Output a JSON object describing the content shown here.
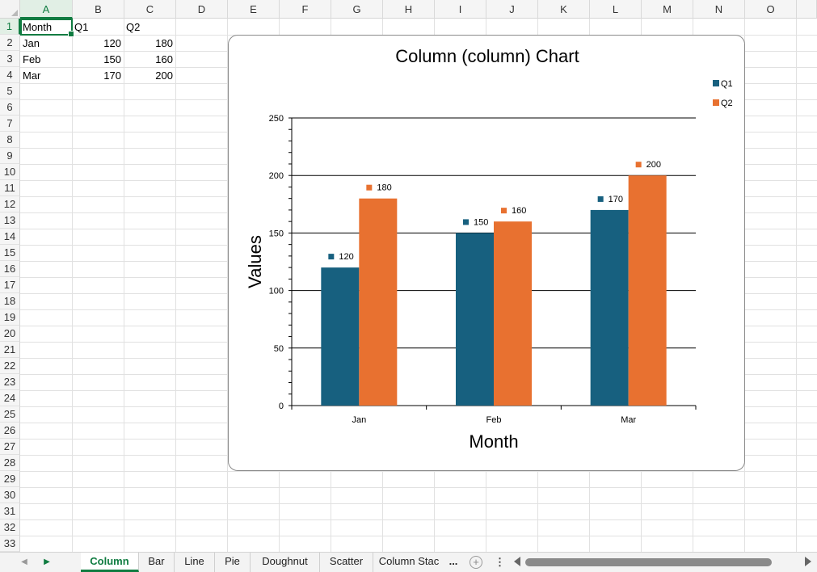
{
  "columns": [
    "A",
    "B",
    "C",
    "D",
    "E",
    "F",
    "G",
    "H",
    "I",
    "J",
    "K",
    "L",
    "M",
    "N",
    "O"
  ],
  "rows": [
    "1",
    "2",
    "3",
    "4",
    "5",
    "6",
    "7",
    "8",
    "9",
    "10",
    "11",
    "12",
    "13",
    "14",
    "15",
    "16",
    "17",
    "18",
    "19",
    "20",
    "21",
    "22",
    "23",
    "24",
    "25",
    "26",
    "27",
    "28",
    "29",
    "30",
    "31",
    "32",
    "33"
  ],
  "cells": {
    "a1": "Month",
    "b1": "Q1",
    "c1": "Q2",
    "a2": "Jan",
    "b2": "120",
    "c2": "180",
    "a3": "Feb",
    "b3": "150",
    "c3": "160",
    "a4": "Mar",
    "b4": "170",
    "c4": "200"
  },
  "chart_data": {
    "type": "bar",
    "title": "Column (column) Chart",
    "xlabel": "Month",
    "ylabel": "Values",
    "categories": [
      "Jan",
      "Feb",
      "Mar"
    ],
    "series": [
      {
        "name": "Q1",
        "values": [
          120,
          150,
          170
        ],
        "color": "#17607f"
      },
      {
        "name": "Q2",
        "values": [
          180,
          160,
          200
        ],
        "color": "#e87130"
      }
    ],
    "ylim": [
      0,
      250
    ],
    "yticks": [
      0,
      50,
      100,
      150,
      200,
      250
    ],
    "grid": true,
    "legend": "top-right",
    "data_labels": true
  },
  "sheet_tabs": {
    "items": [
      "Column",
      "Bar",
      "Line",
      "Pie",
      "Doughnut",
      "Scatter",
      "Column Stac"
    ],
    "active": "Column",
    "more_label": "...",
    "add_label": "+",
    "options_label": "⋮"
  },
  "icons": {
    "prev_sheet": "chevron-left-icon",
    "next_sheet": "chevron-right-icon",
    "add_sheet": "plus-circle-icon",
    "options": "vertical-ellipsis-icon"
  },
  "colors": {
    "accent": "#107c41",
    "q1": "#17607f",
    "q2": "#e87130"
  }
}
